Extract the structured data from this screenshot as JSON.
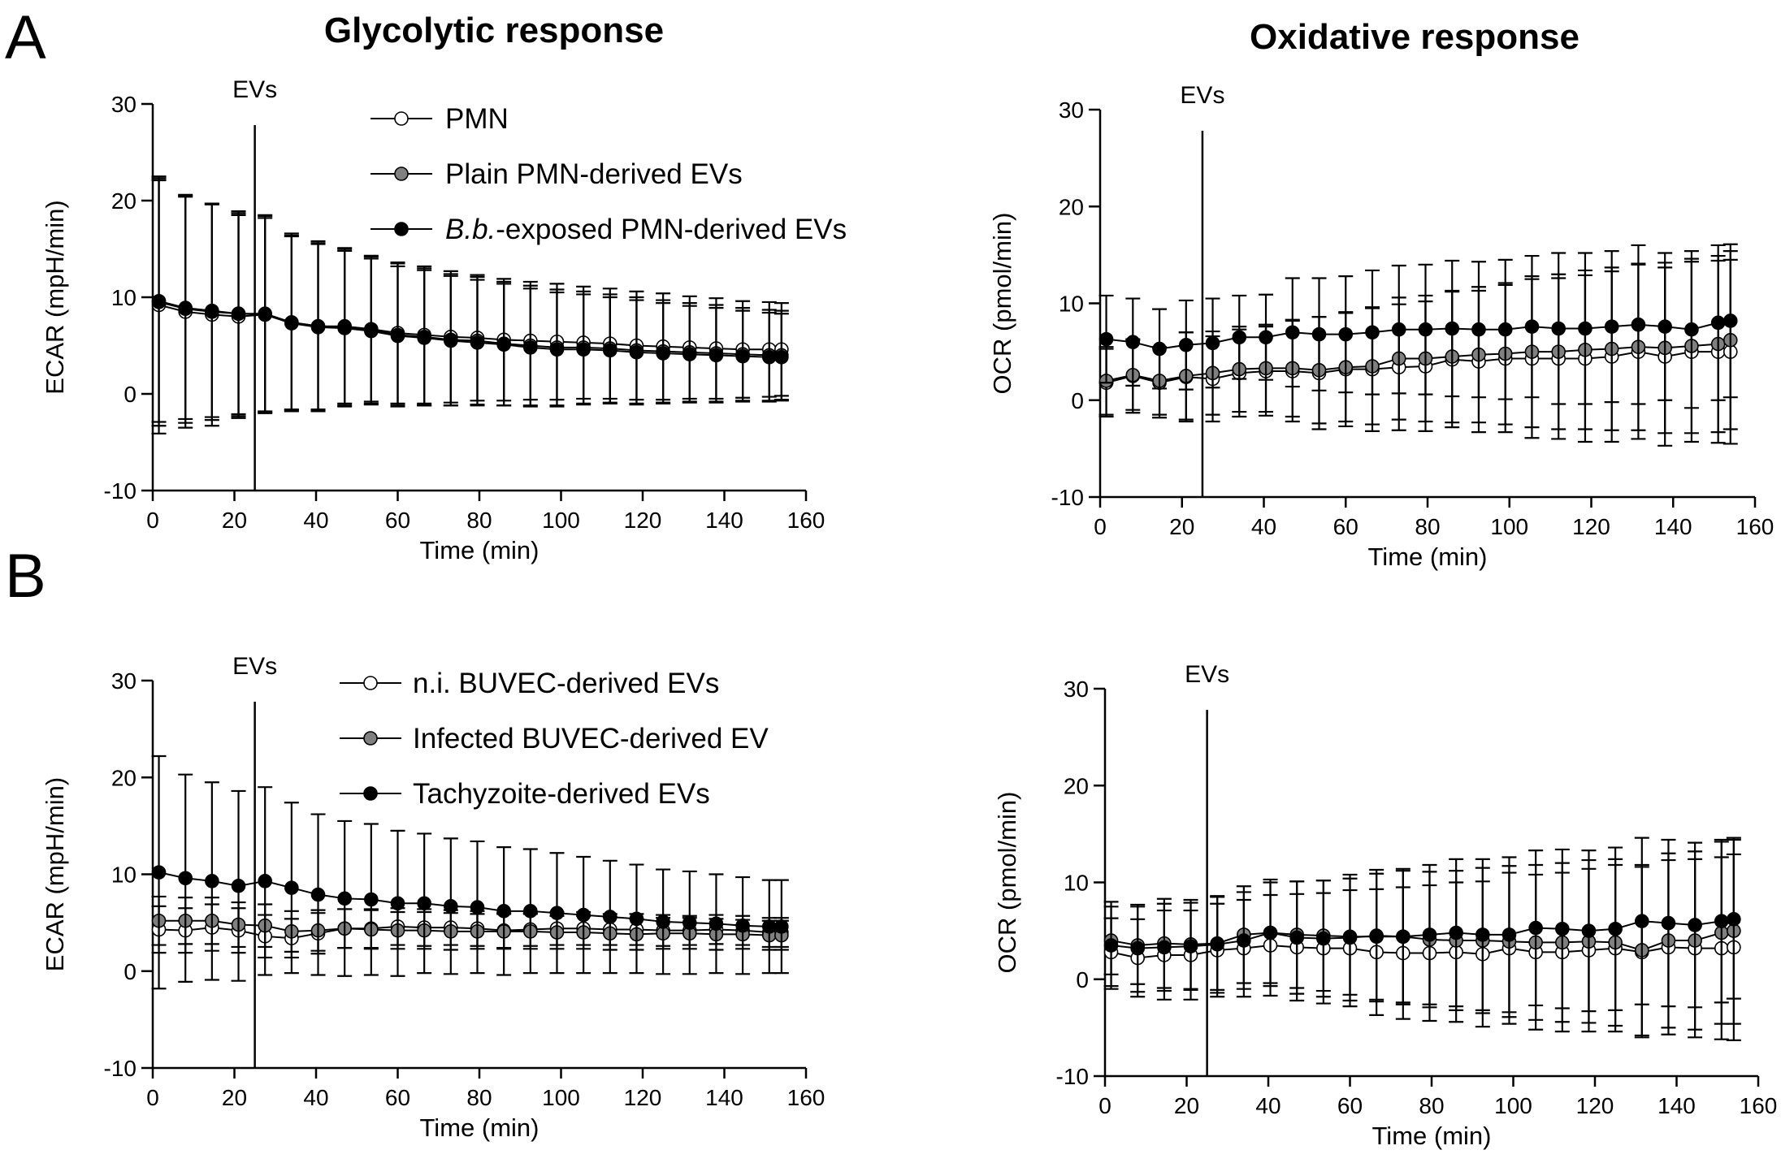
{
  "panels": [
    {
      "id": "A",
      "label": "A"
    },
    {
      "id": "B",
      "label": "B"
    }
  ],
  "column_titles": {
    "left": "Glycolytic response",
    "right": "Oxidative response"
  },
  "legends": {
    "A": [
      {
        "pre": "",
        "italic": "",
        "post": "PMN",
        "fill": "#ffffff"
      },
      {
        "pre": "",
        "italic": "",
        "post": "Plain PMN-derived  EVs",
        "fill": "#808080"
      },
      {
        "pre": "",
        "italic": "B.b.",
        "post": "-exposed PMN-derived EVs",
        "fill": "#000000"
      }
    ],
    "B": [
      {
        "pre": "",
        "italic": "",
        "post": "n.i. BUVEC-derived EVs",
        "fill": "#ffffff"
      },
      {
        "pre": "",
        "italic": "",
        "post": "Infected BUVEC-derived EV",
        "fill": "#808080"
      },
      {
        "pre": "",
        "italic": "",
        "post": "Tachyzoite-derived EVs",
        "fill": "#000000"
      }
    ]
  },
  "chart_data": [
    {
      "id": "A-ecar",
      "panel": "A",
      "type": "line",
      "title": "",
      "xlabel": "Time (min)",
      "ylabel": "ECAR (mpH/min)",
      "xlim": [
        0,
        160
      ],
      "ylim": [
        -10,
        30
      ],
      "xticks": [
        0,
        20,
        40,
        60,
        80,
        100,
        120,
        140,
        160
      ],
      "yticks": [
        -10,
        0,
        10,
        20,
        30
      ],
      "marker": {
        "x": 25,
        "label": "EVs"
      },
      "x": [
        1.5,
        8,
        14.5,
        21,
        27.5,
        34,
        40.5,
        47,
        53.5,
        60,
        66.5,
        73,
        79.5,
        86,
        92.5,
        99,
        105.5,
        112,
        118.5,
        125,
        131.5,
        138,
        144.5,
        151,
        154
      ],
      "series": [
        {
          "name": "PMN",
          "fill": "#ffffff",
          "values": [
            9.2,
            8.5,
            8.2,
            8.0,
            8.2,
            7.4,
            7.0,
            7.0,
            6.7,
            6.3,
            6.1,
            5.9,
            5.8,
            5.6,
            5.5,
            5.4,
            5.3,
            5.2,
            5.0,
            4.9,
            4.8,
            4.7,
            4.6,
            4.6,
            4.6
          ],
          "errors": [
            13.3,
            12.0,
            11.5,
            10.5,
            10.2,
            9.0,
            8.6,
            8.0,
            7.5,
            7.3,
            7.1,
            6.8,
            6.5,
            6.3,
            6.1,
            6.0,
            5.8,
            5.7,
            5.6,
            5.5,
            5.3,
            5.2,
            5.0,
            4.9,
            4.8
          ]
        },
        {
          "name": "Plain PMN-derived EVs",
          "fill": "#808080",
          "values": [
            9.5,
            8.8,
            8.5,
            8.3,
            8.3,
            7.4,
            7.0,
            6.9,
            6.6,
            6.1,
            5.9,
            5.6,
            5.5,
            5.2,
            5.0,
            4.8,
            4.8,
            4.7,
            4.5,
            4.4,
            4.3,
            4.2,
            4.1,
            4.0,
            4.0
          ],
          "errors": [
            12.8,
            11.8,
            11.2,
            10.6,
            10.2,
            9.2,
            8.8,
            8.2,
            7.7,
            7.4,
            7.1,
            6.8,
            6.6,
            6.4,
            6.2,
            6.0,
            5.8,
            5.6,
            5.5,
            5.3,
            5.1,
            5.0,
            4.8,
            4.7,
            4.6
          ]
        },
        {
          "name": "B.b.-exposed PMN-derived EVs",
          "fill": "#000000",
          "values": [
            9.6,
            8.9,
            8.6,
            8.3,
            8.2,
            7.3,
            6.9,
            6.8,
            6.5,
            6.0,
            5.8,
            5.5,
            5.3,
            5.1,
            4.8,
            4.6,
            4.6,
            4.5,
            4.3,
            4.2,
            4.1,
            4.0,
            3.9,
            3.8,
            3.8
          ],
          "errors": [
            12.5,
            11.5,
            11.0,
            10.4,
            10.0,
            9.0,
            8.6,
            8.0,
            7.5,
            7.2,
            7.0,
            6.7,
            6.5,
            6.3,
            6.1,
            5.9,
            5.7,
            5.5,
            5.4,
            5.2,
            5.0,
            4.9,
            4.7,
            4.6,
            4.5
          ]
        }
      ]
    },
    {
      "id": "A-ocr",
      "panel": "A",
      "type": "line",
      "title": "",
      "xlabel": "Time (min)",
      "ylabel": "OCR (pmol/min)",
      "xlim": [
        0,
        160
      ],
      "ylim": [
        -10,
        30
      ],
      "xticks": [
        0,
        20,
        40,
        60,
        80,
        100,
        120,
        140,
        160
      ],
      "yticks": [
        -10,
        0,
        10,
        20,
        30
      ],
      "marker": {
        "x": 25,
        "label": "EVs"
      },
      "x": [
        1.5,
        8,
        14.5,
        21,
        27.5,
        34,
        40.5,
        47,
        53.5,
        60,
        66.5,
        73,
        79.5,
        86,
        92.5,
        99,
        105.5,
        112,
        118.5,
        125,
        131.5,
        138,
        144.5,
        151,
        154
      ],
      "series": [
        {
          "name": "PMN",
          "fill": "#ffffff",
          "values": [
            1.8,
            2.5,
            1.8,
            2.4,
            2.2,
            2.8,
            3.0,
            3.0,
            2.8,
            3.2,
            3.2,
            3.4,
            3.5,
            4.2,
            4.0,
            4.3,
            4.3,
            4.3,
            4.3,
            4.5,
            5.0,
            4.5,
            5.0,
            5.0,
            5.0
          ],
          "errors": [
            3.5,
            3.8,
            3.6,
            4.6,
            4.4,
            4.5,
            4.6,
            5.2,
            5.8,
            5.9,
            6.4,
            6.5,
            6.7,
            7.0,
            7.3,
            7.6,
            8.2,
            8.3,
            8.6,
            8.8,
            9.0,
            9.2,
            9.3,
            9.4,
            9.5
          ]
        },
        {
          "name": "Plain PMN-derived EVs",
          "fill": "#808080",
          "values": [
            2.0,
            2.6,
            2.0,
            2.5,
            2.8,
            3.2,
            3.3,
            3.3,
            3.1,
            3.4,
            3.5,
            4.3,
            4.3,
            4.5,
            4.7,
            4.8,
            5.0,
            5.0,
            5.2,
            5.3,
            5.5,
            5.4,
            5.6,
            5.8,
            6.2
          ],
          "errors": [
            3.5,
            3.6,
            3.5,
            4.5,
            4.3,
            4.4,
            4.5,
            5.0,
            5.5,
            5.6,
            6.0,
            6.3,
            6.5,
            6.8,
            7.0,
            7.3,
            7.8,
            8.0,
            8.2,
            8.4,
            8.6,
            8.8,
            9.0,
            9.1,
            9.2
          ]
        },
        {
          "name": "B.b.-exposed PMN-derived EVs",
          "fill": "#000000",
          "values": [
            6.3,
            6.0,
            5.3,
            5.7,
            5.9,
            6.5,
            6.5,
            7.0,
            6.8,
            6.8,
            7.0,
            7.3,
            7.3,
            7.4,
            7.3,
            7.3,
            7.6,
            7.4,
            7.4,
            7.6,
            7.8,
            7.6,
            7.3,
            8.0,
            8.2
          ],
          "errors": [
            4.5,
            4.5,
            4.1,
            4.6,
            4.6,
            4.3,
            4.4,
            5.6,
            5.8,
            6.0,
            6.4,
            6.6,
            6.7,
            7.0,
            7.0,
            7.2,
            7.3,
            7.8,
            7.8,
            7.8,
            8.2,
            7.6,
            8.1,
            8.0,
            7.9
          ]
        }
      ]
    },
    {
      "id": "B-ecar",
      "panel": "B",
      "type": "line",
      "title": "",
      "xlabel": "Time (min)",
      "ylabel": "ECAR (mpH/min)",
      "xlim": [
        0,
        160
      ],
      "ylim": [
        -10,
        30
      ],
      "xticks": [
        0,
        20,
        40,
        60,
        80,
        100,
        120,
        140,
        160
      ],
      "yticks": [
        -10,
        0,
        10,
        20,
        30
      ],
      "marker": {
        "x": 25,
        "label": "EVs"
      },
      "x": [
        1.5,
        8,
        14.5,
        21,
        27.5,
        34,
        40.5,
        47,
        53.5,
        60,
        66.5,
        73,
        79.5,
        86,
        92.5,
        99,
        105.5,
        112,
        118.5,
        125,
        131.5,
        138,
        144.5,
        151,
        154
      ],
      "series": [
        {
          "name": "n.i. BUVEC-derived EVs",
          "fill": "#ffffff",
          "values": [
            4.3,
            4.2,
            4.5,
            4.2,
            3.6,
            3.4,
            3.9,
            4.4,
            4.4,
            4.6,
            4.5,
            4.5,
            4.4,
            4.2,
            4.3,
            4.4,
            4.4,
            4.3,
            4.3,
            4.2,
            4.2,
            4.3,
            4.2,
            4.0,
            4.0
          ],
          "errors": [
            2.4,
            2.3,
            2.4,
            2.3,
            2.2,
            2.0,
            2.1,
            2.0,
            2.0,
            1.9,
            1.9,
            1.8,
            1.8,
            1.8,
            1.7,
            1.7,
            1.7,
            1.6,
            1.6,
            1.6,
            1.5,
            1.5,
            1.5,
            1.5,
            1.5
          ]
        },
        {
          "name": "Infected BUVEC-derived EV",
          "fill": "#808080",
          "values": [
            5.2,
            5.2,
            5.2,
            4.8,
            4.7,
            4.1,
            4.2,
            4.4,
            4.3,
            4.2,
            4.2,
            4.1,
            4.1,
            4.1,
            4.1,
            4.0,
            4.0,
            3.9,
            3.8,
            3.9,
            3.9,
            3.8,
            3.8,
            3.7,
            3.7
          ],
          "errors": [
            2.5,
            2.4,
            2.4,
            2.3,
            2.2,
            2.1,
            2.1,
            2.0,
            2.0,
            1.9,
            1.9,
            1.9,
            1.8,
            1.8,
            1.8,
            1.7,
            1.7,
            1.7,
            1.6,
            1.6,
            1.6,
            1.6,
            1.5,
            1.5,
            1.5
          ]
        },
        {
          "name": "Tachyzoite-derived EVs",
          "fill": "#000000",
          "values": [
            10.2,
            9.6,
            9.3,
            8.8,
            9.3,
            8.6,
            7.9,
            7.5,
            7.4,
            7.0,
            7.0,
            6.7,
            6.6,
            6.2,
            6.2,
            6.0,
            5.8,
            5.6,
            5.4,
            5.1,
            5.0,
            4.9,
            4.7,
            4.6,
            4.6
          ],
          "errors": [
            12.0,
            10.7,
            10.2,
            9.8,
            9.7,
            8.8,
            8.3,
            8.0,
            7.8,
            7.5,
            7.2,
            7.0,
            6.8,
            6.6,
            6.4,
            6.2,
            6.0,
            5.8,
            5.6,
            5.4,
            5.3,
            5.1,
            5.0,
            4.8,
            4.8
          ]
        }
      ]
    },
    {
      "id": "B-ocr",
      "panel": "B",
      "type": "line",
      "title": "",
      "xlabel": "Time (min)",
      "ylabel": "OCR (pmol/min)",
      "xlim": [
        0,
        160
      ],
      "ylim": [
        -10,
        30
      ],
      "xticks": [
        0,
        20,
        40,
        60,
        80,
        100,
        120,
        140,
        160
      ],
      "yticks": [
        -10,
        0,
        10,
        20,
        30
      ],
      "marker": {
        "x": 25,
        "label": "EVs"
      },
      "x": [
        1.5,
        8,
        14.5,
        21,
        27.5,
        34,
        40.5,
        47,
        53.5,
        60,
        66.5,
        73,
        79.5,
        86,
        92.5,
        99,
        105.5,
        112,
        118.5,
        125,
        131.5,
        138,
        144.5,
        151,
        154
      ],
      "series": [
        {
          "name": "n.i. BUVEC-derived EVs",
          "fill": "#ffffff",
          "values": [
            2.8,
            2.2,
            2.5,
            2.5,
            3.0,
            3.2,
            3.5,
            3.3,
            3.2,
            3.2,
            2.8,
            2.7,
            2.7,
            2.8,
            2.6,
            3.2,
            2.8,
            2.8,
            3.0,
            3.2,
            2.8,
            3.3,
            3.2,
            3.2,
            3.3
          ],
          "errors": [
            3.5,
            4.0,
            4.6,
            4.6,
            4.8,
            5.0,
            5.2,
            5.5,
            5.7,
            6.0,
            6.5,
            6.8,
            7.0,
            7.2,
            7.5,
            7.8,
            8.0,
            8.2,
            8.4,
            8.6,
            8.8,
            9.0,
            9.2,
            9.4,
            9.6
          ]
        },
        {
          "name": "Infected BUVEC-derived EV",
          "fill": "#808080",
          "values": [
            4.0,
            3.5,
            3.7,
            3.6,
            3.7,
            4.6,
            4.8,
            4.6,
            4.5,
            4.4,
            4.4,
            4.4,
            4.1,
            4.0,
            4.0,
            3.9,
            3.8,
            3.8,
            3.9,
            3.8,
            3.0,
            4.0,
            4.0,
            4.8,
            5.0
          ],
          "errors": [
            3.5,
            4.0,
            4.6,
            4.6,
            4.8,
            5.0,
            5.2,
            5.5,
            5.7,
            6.0,
            6.5,
            6.8,
            7.0,
            7.2,
            7.5,
            7.8,
            8.0,
            8.2,
            8.4,
            8.6,
            8.8,
            9.0,
            9.2,
            9.4,
            9.6
          ]
        },
        {
          "name": "Tachyzoite-derived EVs",
          "fill": "#000000",
          "values": [
            3.5,
            3.2,
            3.3,
            3.4,
            3.6,
            4.0,
            4.8,
            4.3,
            4.2,
            4.3,
            4.5,
            4.4,
            4.6,
            4.8,
            4.6,
            4.6,
            5.3,
            5.2,
            5.0,
            5.2,
            6.0,
            5.8,
            5.6,
            6.0,
            6.2
          ],
          "errors": [
            4.5,
            4.5,
            4.5,
            4.5,
            5.0,
            5.0,
            5.5,
            5.8,
            6.0,
            6.5,
            6.8,
            7.0,
            7.2,
            7.6,
            7.8,
            8.0,
            8.0,
            8.2,
            8.3,
            8.4,
            8.6,
            8.6,
            8.5,
            8.4,
            8.2
          ]
        }
      ]
    }
  ]
}
